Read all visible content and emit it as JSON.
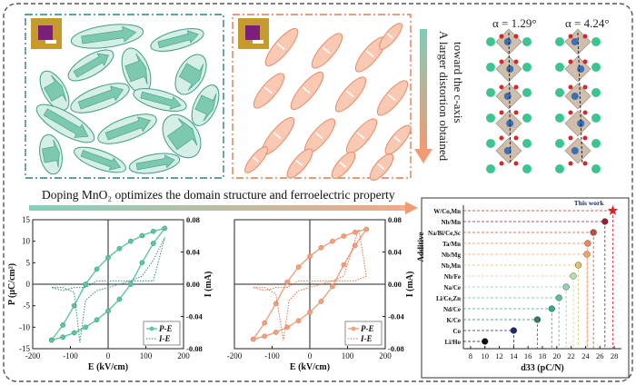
{
  "labels": {
    "alpha_left": "α = 1.29°",
    "alpha_right": "α = 4.24°",
    "distortion_line1": "A larger distortion obtained",
    "distortion_line2": "toward the c-axis",
    "caption": "Doping MnO₂ optimizes the domain structure and ferroelectric property",
    "this_work": "This work"
  },
  "colors": {
    "teal": "#5ec4a4",
    "teal_dark": "#2f8f74",
    "orange": "#f2a07c",
    "orange_dark": "#e0744a",
    "frame": "#555555",
    "star": "#d9262b"
  },
  "chart_data": [
    {
      "type": "line",
      "id": "pe_teal",
      "xlabel": "E (kV/cm)",
      "ylabel": "P (μC/cm²)",
      "y2label": "I (mA)",
      "xlim": [
        -200,
        200
      ],
      "ylim": [
        -15,
        15
      ],
      "y2lim": [
        -0.08,
        0.08
      ],
      "xticks": [
        -200,
        -100,
        0,
        100,
        200
      ],
      "yticks": [
        -15,
        -10,
        -5,
        0,
        5,
        10,
        15
      ],
      "y2ticks": [
        -0.08,
        -0.04,
        0.0,
        0.04,
        0.08
      ],
      "legend": [
        "P-E",
        "I-E"
      ],
      "legend_position": "bottom-right",
      "series": [
        {
          "name": "P-E",
          "style": "marker-line",
          "x": [
            -150,
            -120,
            -90,
            -60,
            -30,
            0,
            30,
            60,
            90,
            120,
            150,
            120,
            90,
            60,
            30,
            0,
            -30,
            -60,
            -90,
            -120,
            -150
          ],
          "y": [
            -13,
            -12.3,
            -11.3,
            -10,
            -8.3,
            -6.2,
            -3.5,
            0,
            5,
            9.5,
            13,
            12.3,
            11.3,
            10,
            8.3,
            6.2,
            3.5,
            0,
            -5,
            -9.5,
            -13
          ]
        },
        {
          "name": "I-E",
          "style": "dotted",
          "x": [
            -150,
            -120,
            -90,
            -75,
            -60,
            -30,
            0,
            30,
            60,
            90,
            120,
            150,
            120,
            90,
            75,
            60,
            30,
            0,
            -30,
            -60,
            -90,
            -120,
            -150
          ],
          "y": [
            -0.004,
            -0.004,
            -0.01,
            -0.072,
            -0.02,
            -0.008,
            -0.004,
            0.0,
            0.004,
            0.01,
            0.03,
            0.058,
            0.004,
            0.004,
            0.004,
            0.004,
            0.004,
            0.004,
            0.004,
            -0.004,
            -0.004,
            -0.008,
            -0.004
          ]
        }
      ]
    },
    {
      "type": "line",
      "id": "pe_orange",
      "xlabel": "E (kV/cm)",
      "ylabel": "",
      "y2label": "I (mA)",
      "xlim": [
        -200,
        200
      ],
      "ylim": [
        -15,
        15
      ],
      "y2lim": [
        -0.08,
        0.08
      ],
      "xticks": [
        -200,
        -100,
        0,
        100,
        200
      ],
      "y2ticks": [
        -0.08,
        -0.04,
        0.0,
        0.04,
        0.08
      ],
      "legend": [
        "P-E",
        "I-E"
      ],
      "legend_position": "bottom-right",
      "series": [
        {
          "name": "P-E",
          "style": "marker-line",
          "x": [
            -150,
            -120,
            -90,
            -60,
            -30,
            0,
            30,
            60,
            90,
            120,
            150,
            120,
            90,
            60,
            30,
            0,
            -30,
            -60,
            -90,
            -120,
            -150
          ],
          "y": [
            -12.8,
            -12.1,
            -11.2,
            -10,
            -8.5,
            -6.5,
            -4,
            -0.5,
            4.5,
            9,
            12.8,
            12.1,
            11.2,
            10,
            8.5,
            6.5,
            4,
            0.5,
            -4.5,
            -9,
            -12.8
          ]
        },
        {
          "name": "I-E",
          "style": "dotted",
          "x": [
            -150,
            -120,
            -90,
            -70,
            -55,
            -30,
            0,
            30,
            60,
            90,
            110,
            130,
            150,
            120,
            90,
            60,
            30,
            0,
            -30,
            -60,
            -90,
            -120,
            -150
          ],
          "y": [
            -0.004,
            -0.004,
            -0.012,
            -0.07,
            -0.02,
            -0.008,
            -0.004,
            0.0,
            0.004,
            0.01,
            0.04,
            0.068,
            0.01,
            0.004,
            0.004,
            0.004,
            0.004,
            0.004,
            0.004,
            -0.004,
            -0.004,
            -0.008,
            -0.004
          ]
        }
      ]
    },
    {
      "type": "scatter",
      "id": "d33",
      "xlabel": "d33 (pC/N)",
      "ylabel": "Additive",
      "xlim": [
        7,
        29
      ],
      "xticks": [
        8,
        10,
        12,
        14,
        16,
        18,
        20,
        22,
        24,
        26,
        28
      ],
      "categories": [
        "Li/Ho",
        "Co",
        "K/Ce",
        "Nd/Ce",
        "Li/Ce,Zn",
        "Na/Ce",
        "Nb/Fe",
        "Nb,Mn",
        "Nb/Mg",
        "Ta/Mn",
        "Na/Bi/Ce,Sc",
        "Nb/Mn",
        "W/Co,Mn"
      ],
      "values": [
        10.0,
        14.0,
        17.3,
        19.3,
        20.3,
        21.3,
        22.3,
        23.0,
        24.2,
        24.3,
        25.1,
        26.7,
        27.8
      ],
      "highlight": "W/Co,Mn"
    }
  ]
}
